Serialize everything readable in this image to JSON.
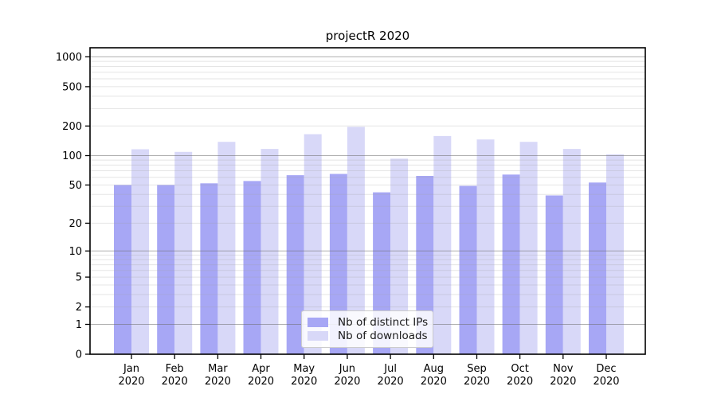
{
  "chart_data": {
    "type": "bar",
    "title": "projectR 2020",
    "categories": [
      "Jan 2020",
      "Feb 2020",
      "Mar 2020",
      "Apr 2020",
      "May 2020",
      "Jun 2020",
      "Jul 2020",
      "Aug 2020",
      "Sep 2020",
      "Oct 2020",
      "Nov 2020",
      "Dec 2020"
    ],
    "series": [
      {
        "name": "Nb of distinct IPs",
        "color": "#a7a7f5",
        "values": [
          50,
          50,
          52,
          55,
          63,
          65,
          42,
          62,
          49,
          64,
          39,
          53
        ]
      },
      {
        "name": "Nb of downloads",
        "color": "#d8d8f8",
        "values": [
          116,
          109,
          138,
          117,
          165,
          196,
          93,
          158,
          146,
          138,
          117,
          103
        ]
      }
    ],
    "xlabel": "",
    "ylabel": "",
    "yscale": "log1p",
    "yticks": [
      0,
      1,
      2,
      5,
      10,
      20,
      50,
      100,
      200,
      500,
      1000
    ],
    "minor_yticks": [
      2,
      3,
      4,
      5,
      6,
      7,
      8,
      9,
      20,
      30,
      40,
      50,
      60,
      70,
      80,
      90,
      200,
      300,
      400,
      500,
      600,
      700,
      800,
      900
    ],
    "ylim": [
      0,
      1236
    ],
    "grid": "horizontal major+minor, drawn above bars",
    "legend_position": "lower center"
  }
}
